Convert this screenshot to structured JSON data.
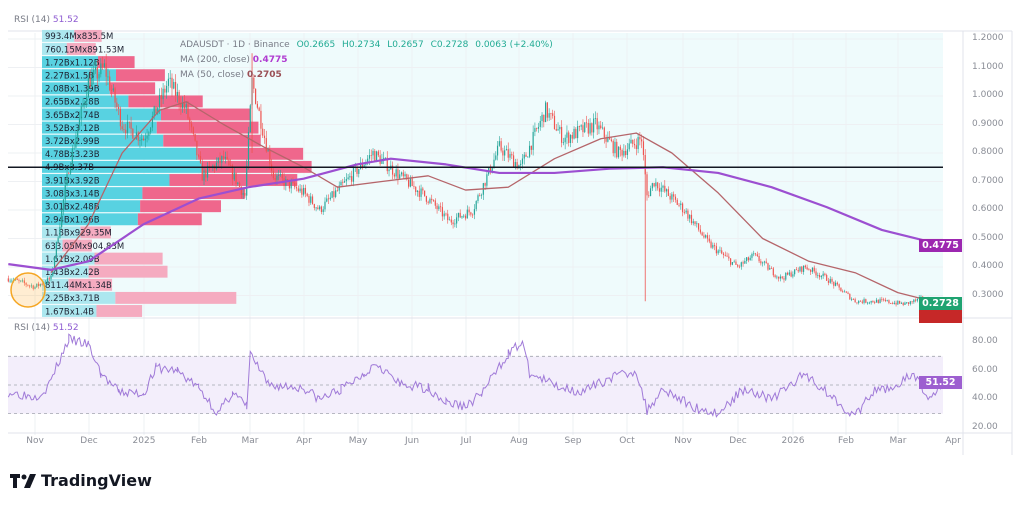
{
  "legend": {
    "rsi_top": {
      "label": "RSI (14)",
      "value": "51.52"
    },
    "symbol": "ADAUSDT · 1D · Binance",
    "ohlc": {
      "open": "O0.2665",
      "high": "H0.2734",
      "low": "L0.2657",
      "close": "C0.2728",
      "change": "0.0063 (+2.40%)"
    },
    "ma200": {
      "label": "MA (200, close)",
      "value": "0.4775"
    },
    "ma50": {
      "label": "MA (50, close)",
      "value": "0.2705"
    },
    "rsi": {
      "label": "RSI (14)",
      "value": "51.52"
    }
  },
  "badges": {
    "ma200": "0.4775",
    "price": "0.2728",
    "rsi": "51.52"
  },
  "colors": {
    "up": "#26a69a",
    "down": "#ef5350",
    "ma200": "#9c4fd1",
    "ma50": "#b5656a",
    "vp_up": "#4fd0df",
    "vp_down": "#ee5f86",
    "vp_up_light": "#a8e6ee",
    "vp_down_light": "#f4a6bd",
    "rsi": "#a07ad8",
    "price_badge": "#1fa371",
    "ma200_badge": "#9c27b0",
    "rsi_badge": "#9d5fd0"
  },
  "price_axis": [
    "1.2000",
    "1.1000",
    "1.0000",
    "0.9000",
    "0.8000",
    "0.7000",
    "0.6000",
    "0.5000",
    "0.4000",
    "0.3000"
  ],
  "rsi_axis": [
    "80.00",
    "60.00",
    "40.00",
    "20.00"
  ],
  "time_axis": [
    "Nov",
    "Dec",
    "2025",
    "Feb",
    "Mar",
    "Apr",
    "May",
    "Jun",
    "Jul",
    "Aug",
    "Sep",
    "Oct",
    "Nov",
    "Dec",
    "2026",
    "Feb",
    "Mar",
    "Apr"
  ],
  "brand": "TradingView",
  "chart_data": {
    "type": "candlestick",
    "price_range": [
      0.24,
      1.22
    ],
    "horizontal_line": 0.75,
    "price": [
      [
        "2024-10-17",
        0.36
      ],
      [
        "2024-11-01",
        0.33
      ],
      [
        "2024-11-10",
        0.36
      ],
      [
        "2024-11-20",
        0.75
      ],
      [
        "2024-12-01",
        1.05
      ],
      [
        "2024-12-10",
        1.1
      ],
      [
        "2024-12-20",
        0.9
      ],
      [
        "2025-01-01",
        0.85
      ],
      [
        "2025-01-15",
        1.05
      ],
      [
        "2025-01-25",
        0.95
      ],
      [
        "2025-02-03",
        0.72
      ],
      [
        "2025-02-15",
        0.78
      ],
      [
        "2025-02-27",
        0.65
      ],
      [
        "2025-03-03",
        1.05
      ],
      [
        "2025-03-15",
        0.72
      ],
      [
        "2025-04-01",
        0.66
      ],
      [
        "2025-04-10",
        0.6
      ],
      [
        "2025-04-25",
        0.7
      ],
      [
        "2025-05-10",
        0.8
      ],
      [
        "2025-05-25",
        0.72
      ],
      [
        "2025-06-10",
        0.64
      ],
      [
        "2025-06-22",
        0.56
      ],
      [
        "2025-07-05",
        0.6
      ],
      [
        "2025-07-20",
        0.82
      ],
      [
        "2025-08-01",
        0.75
      ],
      [
        "2025-08-15",
        0.95
      ],
      [
        "2025-08-25",
        0.85
      ],
      [
        "2025-09-12",
        0.9
      ],
      [
        "2025-09-25",
        0.8
      ],
      [
        "2025-10-08",
        0.85
      ],
      [
        "2025-10-11",
        0.65
      ],
      [
        "2025-10-15",
        0.7
      ],
      [
        "2025-11-01",
        0.6
      ],
      [
        "2025-11-15",
        0.48
      ],
      [
        "2025-12-01",
        0.4
      ],
      [
        "2025-12-10",
        0.44
      ],
      [
        "2025-12-25",
        0.36
      ],
      [
        "2026-01-08",
        0.4
      ],
      [
        "2026-01-20",
        0.36
      ],
      [
        "2026-02-05",
        0.28
      ],
      [
        "2026-02-20",
        0.28
      ],
      [
        "2026-03-05",
        0.27
      ],
      [
        "2026-03-15",
        0.29
      ],
      [
        "2026-03-22",
        0.26
      ],
      [
        "2026-03-26",
        0.2728
      ]
    ],
    "ma50": [
      [
        "2024-11-10",
        0.38
      ],
      [
        "2024-12-01",
        0.55
      ],
      [
        "2024-12-20",
        0.8
      ],
      [
        "2025-01-10",
        0.95
      ],
      [
        "2025-01-25",
        0.98
      ],
      [
        "2025-02-15",
        0.9
      ],
      [
        "2025-03-10",
        0.82
      ],
      [
        "2025-04-01",
        0.75
      ],
      [
        "2025-04-20",
        0.68
      ],
      [
        "2025-05-15",
        0.7
      ],
      [
        "2025-06-10",
        0.72
      ],
      [
        "2025-07-01",
        0.67
      ],
      [
        "2025-07-25",
        0.68
      ],
      [
        "2025-08-20",
        0.78
      ],
      [
        "2025-09-15",
        0.85
      ],
      [
        "2025-10-05",
        0.87
      ],
      [
        "2025-10-25",
        0.8
      ],
      [
        "2025-11-20",
        0.66
      ],
      [
        "2025-12-15",
        0.5
      ],
      [
        "2026-01-10",
        0.42
      ],
      [
        "2026-02-05",
        0.38
      ],
      [
        "2026-03-01",
        0.31
      ],
      [
        "2026-03-26",
        0.2705
      ]
    ],
    "ma200": [
      [
        "2024-10-17",
        0.41
      ],
      [
        "2024-11-10",
        0.39
      ],
      [
        "2024-12-01",
        0.42
      ],
      [
        "2025-01-01",
        0.55
      ],
      [
        "2025-02-01",
        0.64
      ],
      [
        "2025-03-01",
        0.68
      ],
      [
        "2025-04-01",
        0.71
      ],
      [
        "2025-05-01",
        0.76
      ],
      [
        "2025-05-20",
        0.78
      ],
      [
        "2025-06-20",
        0.76
      ],
      [
        "2025-07-20",
        0.73
      ],
      [
        "2025-08-20",
        0.73
      ],
      [
        "2025-09-20",
        0.745
      ],
      [
        "2025-10-20",
        0.75
      ],
      [
        "2025-11-20",
        0.73
      ],
      [
        "2025-12-20",
        0.68
      ],
      [
        "2026-01-20",
        0.61
      ],
      [
        "2026-02-20",
        0.53
      ],
      [
        "2026-03-26",
        0.4775
      ]
    ],
    "rsi": [
      [
        "2024-10-17",
        45
      ],
      [
        "2024-11-01",
        42
      ],
      [
        "2024-11-08",
        48
      ],
      [
        "2024-11-20",
        82
      ],
      [
        "2024-12-01",
        78
      ],
      [
        "2024-12-08",
        58
      ],
      [
        "2024-12-18",
        45
      ],
      [
        "2025-01-01",
        44
      ],
      [
        "2025-01-08",
        62
      ],
      [
        "2025-01-20",
        60
      ],
      [
        "2025-02-01",
        48
      ],
      [
        "2025-02-12",
        30
      ],
      [
        "2025-02-20",
        45
      ],
      [
        "2025-02-28",
        35
      ],
      [
        "2025-03-02",
        72
      ],
      [
        "2025-03-12",
        50
      ],
      [
        "2025-04-01",
        48
      ],
      [
        "2025-04-10",
        40
      ],
      [
        "2025-04-22",
        47
      ],
      [
        "2025-05-05",
        58
      ],
      [
        "2025-05-12",
        66
      ],
      [
        "2025-05-25",
        50
      ],
      [
        "2025-06-10",
        48
      ],
      [
        "2025-06-20",
        38
      ],
      [
        "2025-07-01",
        35
      ],
      [
        "2025-07-10",
        44
      ],
      [
        "2025-07-25",
        72
      ],
      [
        "2025-08-02",
        80
      ],
      [
        "2025-08-06",
        58
      ],
      [
        "2025-08-20",
        50
      ],
      [
        "2025-09-05",
        45
      ],
      [
        "2025-09-20",
        55
      ],
      [
        "2025-10-05",
        60
      ],
      [
        "2025-10-11",
        32
      ],
      [
        "2025-10-20",
        48
      ],
      [
        "2025-11-05",
        35
      ],
      [
        "2025-11-20",
        30
      ],
      [
        "2025-12-05",
        48
      ],
      [
        "2025-12-20",
        40
      ],
      [
        "2026-01-08",
        58
      ],
      [
        "2026-01-20",
        45
      ],
      [
        "2026-02-05",
        28
      ],
      [
        "2026-02-15",
        45
      ],
      [
        "2026-03-01",
        50
      ],
      [
        "2026-03-10",
        58
      ],
      [
        "2026-03-18",
        40
      ],
      [
        "2026-03-26",
        51.52
      ]
    ],
    "rsi_bands": [
      30,
      50,
      70
    ],
    "rsi_range": [
      15,
      90
    ],
    "volume_profile": [
      {
        "label": "993.4Mx835.5M",
        "up": 0.99,
        "down": 0.84
      },
      {
        "label": "760.15Mx891.53M",
        "up": 0.76,
        "down": 0.89
      },
      {
        "label": "1.72Bx1.12B",
        "up": 1.72,
        "down": 1.12
      },
      {
        "label": "2.27Bx1.5B",
        "up": 2.27,
        "down": 1.5
      },
      {
        "label": "2.08Bx1.39B",
        "up": 2.08,
        "down": 1.39
      },
      {
        "label": "2.65Bx2.28B",
        "up": 2.65,
        "down": 2.28
      },
      {
        "label": "3.65Bx2.74B",
        "up": 3.65,
        "down": 2.74
      },
      {
        "label": "3.52Bx3.12B",
        "up": 3.52,
        "down": 3.12
      },
      {
        "label": "3.72Bx2.99B",
        "up": 3.72,
        "down": 2.99
      },
      {
        "label": "4.78Bx3.23B",
        "up": 4.78,
        "down": 3.23
      },
      {
        "label": "4.9Bx3.37B",
        "up": 4.9,
        "down": 3.37
      },
      {
        "label": "3.91Bx3.92B",
        "up": 3.91,
        "down": 3.92
      },
      {
        "label": "3.08Bx3.14B",
        "up": 3.08,
        "down": 3.14
      },
      {
        "label": "3.01Bx2.48B",
        "up": 3.01,
        "down": 2.48
      },
      {
        "label": "2.94Bx1.96B",
        "up": 2.94,
        "down": 1.96
      },
      {
        "label": "1.18Bx929.35M",
        "up": 1.18,
        "down": 0.93
      },
      {
        "label": "633.05Mx904.83M",
        "up": 0.63,
        "down": 0.9
      },
      {
        "label": "1.61Bx2.09B",
        "up": 1.61,
        "down": 2.09
      },
      {
        "label": "1.43Bx2.42B",
        "up": 1.43,
        "down": 2.42
      },
      {
        "label": "811.44Mx1.34B",
        "up": 0.81,
        "down": 1.34
      },
      {
        "label": "2.25Bx3.71B",
        "up": 2.25,
        "down": 3.71
      },
      {
        "label": "1.67Bx1.4B",
        "up": 1.67,
        "down": 1.4
      }
    ],
    "value_area_rows": [
      2,
      14
    ]
  }
}
